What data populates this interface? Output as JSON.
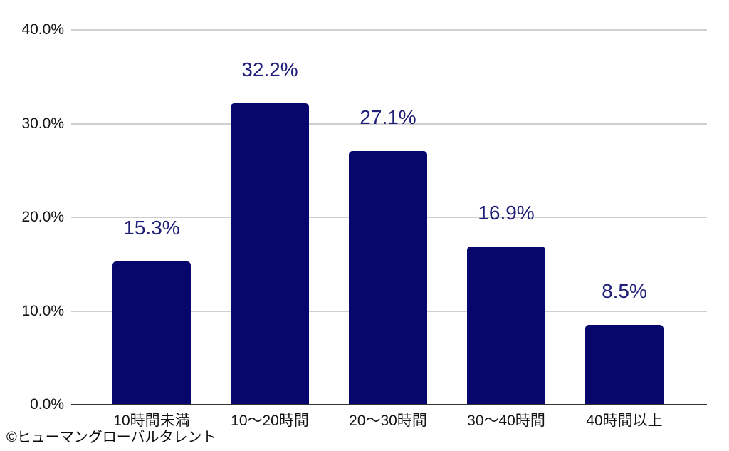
{
  "chart_data": {
    "type": "bar",
    "title": "",
    "xlabel": "",
    "ylabel": "",
    "categories": [
      "10時間未満",
      "10〜20時間",
      "20〜30時間",
      "30〜40時間",
      "40時間以上"
    ],
    "values": [
      15.3,
      32.2,
      27.1,
      16.9,
      8.5
    ],
    "value_labels": [
      "15.3%",
      "32.2%",
      "27.1%",
      "16.9%",
      "8.5%"
    ],
    "ylim": [
      0,
      40
    ],
    "y_ticks": [
      0,
      10,
      20,
      30,
      40
    ],
    "y_tick_labels": [
      "0.0%",
      "10.0%",
      "20.0%",
      "30.0%",
      "40.0%"
    ],
    "grid": true,
    "legend": false,
    "colors": {
      "bar": "#06066c",
      "value_label": "#1f1f78",
      "axis_label": "#141414",
      "gridline": "#cfcfcf",
      "baseline": "#323232",
      "background": "#ffffff"
    }
  },
  "footer": {
    "copyright": "©ヒューマングローバルタレント"
  }
}
